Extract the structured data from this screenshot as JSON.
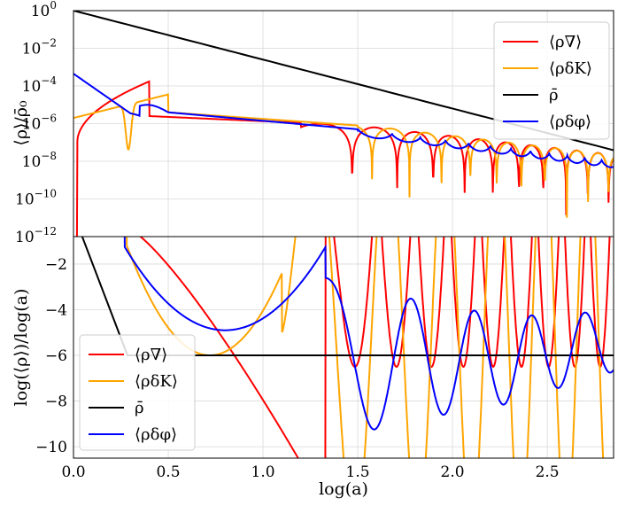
{
  "chart_data": [
    {
      "type": "line",
      "panel": "top",
      "yscale": "log",
      "ylabel": "⟨ρ⟩/ρ̄₀",
      "xlim": [
        0.0,
        2.85
      ],
      "ylim_exponent": [
        -12,
        0
      ],
      "xgrid": [
        0.0,
        0.5,
        1.0,
        1.5,
        2.0,
        2.5
      ],
      "ygrid_exponents": [
        -12,
        -10,
        -8,
        -6,
        -4,
        -2,
        0
      ],
      "ytick_labels": [
        {
          "base": "10",
          "exp": "−12",
          "value": -12
        },
        {
          "base": "10",
          "exp": "−10",
          "value": -10
        },
        {
          "base": "10",
          "exp": "−8",
          "value": -8
        },
        {
          "base": "10",
          "exp": "−6",
          "value": -6
        },
        {
          "base": "10",
          "exp": "−4",
          "value": -4
        },
        {
          "base": "10",
          "exp": "−2",
          "value": -2
        },
        {
          "base": "10",
          "exp": "0",
          "value": 0
        }
      ],
      "legend_position": "top-right",
      "series": [
        {
          "name": "⟨ρ∇⟩",
          "color": "#ff0000",
          "role": "gradient"
        },
        {
          "name": "⟨ρδK⟩",
          "color": "#ffa500",
          "role": "kinetic"
        },
        {
          "name": "ρ̄",
          "color": "#000000",
          "role": "background"
        },
        {
          "name": "⟨ρδφ⟩",
          "color": "#0000ff",
          "role": "field"
        }
      ]
    },
    {
      "type": "line",
      "panel": "bottom",
      "xlabel": "log(a)",
      "ylabel": "log(⟨ρ⟩)/log(a)",
      "xlim": [
        0.0,
        2.85
      ],
      "ylim": [
        -10.5,
        -0.8
      ],
      "xtick_labels": [
        "0.0",
        "0.5",
        "1.0",
        "1.5",
        "2.0",
        "2.5"
      ],
      "xtick_values": [
        0.0,
        0.5,
        1.0,
        1.5,
        2.0,
        2.5
      ],
      "ytick_labels": [
        "−2",
        "−4",
        "−6",
        "−8",
        "−10"
      ],
      "ytick_values": [
        -2,
        -4,
        -6,
        -8,
        -10
      ],
      "legend_position": "center-left",
      "series": [
        {
          "name": "⟨ρ∇⟩",
          "color": "#ff0000"
        },
        {
          "name": "⟨ρδK⟩",
          "color": "#ffa500"
        },
        {
          "name": "ρ̄",
          "color": "#000000",
          "value": -6
        },
        {
          "name": "⟨ρδφ⟩",
          "color": "#0000ff"
        }
      ]
    }
  ]
}
